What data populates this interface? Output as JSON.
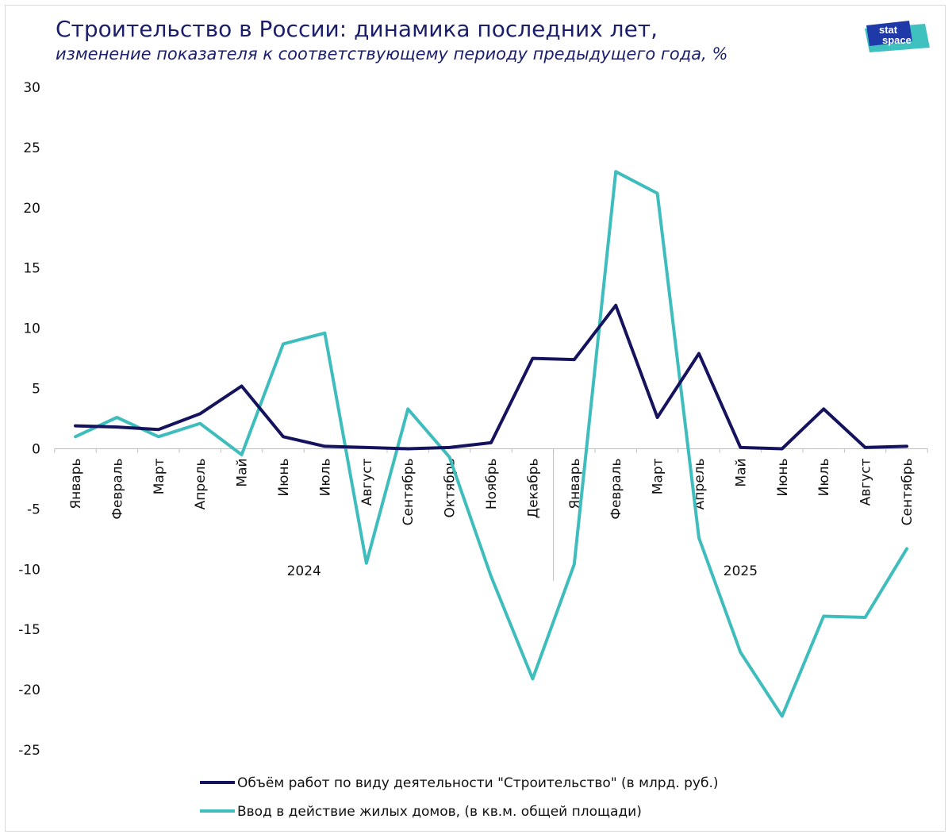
{
  "title": "Строительство в России: динамика последних лет,",
  "subtitle": "изменение показателя к соответствующему периоду предыдущего года, %",
  "logo": {
    "line1": "stat",
    "line2": "space",
    "colors": {
      "dark": "#1f3aa8",
      "light": "#3fc1c0"
    }
  },
  "colors": {
    "series1": "#15135e",
    "series2": "#3fbdbd",
    "axis": "#bfbfbf"
  },
  "chart_data": {
    "type": "line",
    "title": "Строительство в России: динамика последних лет,",
    "subtitle": "изменение показателя к соответствующему периоду предыдущего года, %",
    "ylim": [
      -25,
      30
    ],
    "yticks": [
      30,
      25,
      20,
      15,
      10,
      5,
      0,
      -5,
      -10,
      -15,
      -20,
      -25
    ],
    "grid": false,
    "legend_position": "bottom",
    "categories": [
      "Январь",
      "Февраль",
      "Март",
      "Апрель",
      "Май",
      "Июнь",
      "Июль",
      "Август",
      "Сентябрь",
      "Октябрь",
      "Ноябрь",
      "Декабрь",
      "Январь",
      "Февраль",
      "Март",
      "Апрель",
      "Май",
      "Июнь",
      "Июль",
      "Август",
      "Сентябрь"
    ],
    "groups": [
      {
        "label": "2024",
        "count": 12
      },
      {
        "label": "2025",
        "count": 9
      }
    ],
    "series": [
      {
        "name": "Объём работ по виду деятельности \"Строительство\" (в млрд. руб.)",
        "color": "#15135e",
        "values": [
          1.9,
          1.8,
          1.6,
          2.9,
          5.2,
          1.0,
          0.2,
          0.1,
          0.0,
          0.1,
          0.5,
          7.5,
          7.4,
          11.9,
          2.6,
          7.9,
          0.1,
          0.0,
          3.3,
          0.1,
          0.2
        ]
      },
      {
        "name": "Ввод в действие жилых домов, (в кв.м. общей площади)",
        "color": "#3fbdbd",
        "values": [
          1.0,
          2.6,
          1.0,
          2.1,
          -0.5,
          8.7,
          9.6,
          -9.5,
          3.3,
          -0.7,
          -10.6,
          -19.1,
          -9.6,
          23.0,
          21.2,
          -7.4,
          -16.9,
          -22.2,
          -13.9,
          -14.0,
          -8.3
        ]
      }
    ]
  }
}
